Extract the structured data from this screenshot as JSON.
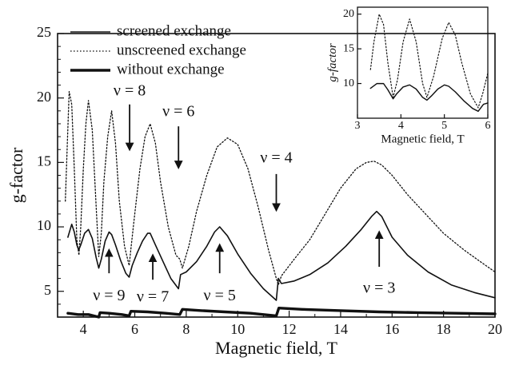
{
  "chart_data": [
    {
      "type": "line",
      "xlabel": "Magnetic field, T",
      "ylabel": "g-factor",
      "xlim": [
        3,
        20
      ],
      "ylim": [
        3,
        25
      ],
      "xticks": [
        4,
        6,
        8,
        10,
        12,
        14,
        16,
        18,
        20
      ],
      "yticks": [
        5,
        10,
        15,
        20,
        25
      ],
      "legend_position": "top-left",
      "series": [
        {
          "name": "screened exchange",
          "style": "solid",
          "color": "#111111",
          "x": [
            3.4,
            3.55,
            3.65,
            3.75,
            3.82,
            3.9,
            4.05,
            4.2,
            4.35,
            4.5,
            4.6,
            4.7,
            4.85,
            5.0,
            5.1,
            5.25,
            5.45,
            5.65,
            5.78,
            5.9,
            6.1,
            6.3,
            6.5,
            6.6,
            6.8,
            7.1,
            7.4,
            7.7,
            7.78,
            8.0,
            8.4,
            8.8,
            9.1,
            9.3,
            9.6,
            10.0,
            10.5,
            11.0,
            11.5,
            11.58,
            11.7,
            12.2,
            12.8,
            13.5,
            14.2,
            14.8,
            15.2,
            15.4,
            15.6,
            16.0,
            16.6,
            17.4,
            18.3,
            19.2,
            20.0
          ],
          "y": [
            9.2,
            10.2,
            9.6,
            8.6,
            8.2,
            8.6,
            9.5,
            9.8,
            9.1,
            7.6,
            6.8,
            7.5,
            8.9,
            9.6,
            9.4,
            8.6,
            7.4,
            6.4,
            6.1,
            7.0,
            8.0,
            8.9,
            9.5,
            9.5,
            8.6,
            7.3,
            6.0,
            5.2,
            6.3,
            6.5,
            7.3,
            8.5,
            9.6,
            10.0,
            9.3,
            7.9,
            6.4,
            5.2,
            4.3,
            6.0,
            5.6,
            5.8,
            6.3,
            7.2,
            8.5,
            9.8,
            10.8,
            11.2,
            10.8,
            9.2,
            7.8,
            6.5,
            5.5,
            4.9,
            4.5
          ]
        },
        {
          "name": "unscreened exchange",
          "style": "dotted",
          "color": "#111111",
          "x": [
            3.3,
            3.38,
            3.45,
            3.55,
            3.65,
            3.75,
            3.83,
            3.9,
            4.0,
            4.1,
            4.2,
            4.35,
            4.5,
            4.6,
            4.7,
            4.8,
            4.95,
            5.1,
            5.25,
            5.4,
            5.6,
            5.78,
            5.85,
            6.0,
            6.2,
            6.4,
            6.6,
            6.8,
            7.0,
            7.3,
            7.6,
            7.75,
            7.85,
            8.1,
            8.4,
            8.8,
            9.2,
            9.6,
            10.0,
            10.4,
            10.8,
            11.2,
            11.5,
            11.58,
            11.7,
            12.2,
            12.8,
            13.4,
            14.0,
            14.6,
            15.0,
            15.3,
            15.6,
            16.0,
            16.6,
            17.3,
            18.0,
            18.8,
            19.5,
            20.0
          ],
          "y": [
            12.0,
            16.5,
            20.5,
            19.5,
            14.5,
            9.0,
            7.8,
            10.0,
            14.5,
            18.0,
            19.8,
            17.5,
            11.5,
            7.7,
            9.5,
            13.5,
            17.0,
            19.0,
            16.5,
            12.0,
            8.5,
            7.0,
            8.3,
            11.0,
            14.5,
            17.0,
            18.0,
            16.5,
            13.5,
            10.0,
            7.8,
            7.5,
            6.8,
            8.5,
            11.2,
            14.0,
            16.2,
            16.9,
            16.4,
            14.5,
            11.5,
            8.2,
            6.0,
            5.5,
            6.2,
            7.5,
            9.0,
            11.0,
            13.0,
            14.5,
            15.0,
            15.1,
            14.8,
            14.0,
            12.5,
            11.0,
            9.5,
            8.2,
            7.2,
            6.5
          ]
        },
        {
          "name": "without exchange",
          "style": "thick-solid",
          "color": "#111111",
          "x": [
            3.4,
            3.8,
            4.2,
            4.6,
            4.65,
            5.0,
            5.5,
            5.78,
            5.85,
            6.5,
            7.2,
            7.75,
            7.85,
            8.6,
            9.5,
            10.5,
            11.5,
            11.6,
            12.5,
            14.0,
            15.5,
            17.0,
            18.5,
            20.0
          ],
          "y": [
            3.3,
            3.2,
            3.2,
            3.0,
            3.35,
            3.3,
            3.2,
            3.1,
            3.45,
            3.4,
            3.3,
            3.2,
            3.6,
            3.5,
            3.4,
            3.3,
            3.1,
            3.7,
            3.6,
            3.5,
            3.4,
            3.35,
            3.3,
            3.25
          ]
        }
      ],
      "annotations": [
        {
          "text": "ν = 8",
          "x": 5.8,
          "y": 20.2,
          "arrow": "down",
          "arrow_from": 19.5,
          "arrow_to": 16.0
        },
        {
          "text": "ν = 6",
          "x": 7.7,
          "y": 18.6,
          "arrow": "down",
          "arrow_from": 17.8,
          "arrow_to": 14.6
        },
        {
          "text": "ν = 4",
          "x": 11.5,
          "y": 15.0,
          "arrow": "down",
          "arrow_from": 14.1,
          "arrow_to": 11.3
        },
        {
          "text": "ν = 9",
          "x": 5.0,
          "y": 4.3,
          "arrow": "up",
          "arrow_from": 6.4,
          "arrow_to": 8.2
        },
        {
          "text": "ν = 7",
          "x": 6.7,
          "y": 4.2,
          "arrow": "up",
          "arrow_from": 5.9,
          "arrow_to": 7.8
        },
        {
          "text": "ν = 5",
          "x": 9.3,
          "y": 4.3,
          "arrow": "up",
          "arrow_from": 6.4,
          "arrow_to": 8.6
        },
        {
          "text": "ν = 3",
          "x": 15.5,
          "y": 4.9,
          "arrow": "up",
          "arrow_from": 6.9,
          "arrow_to": 9.6
        }
      ]
    },
    {
      "type": "line",
      "xlabel": "Magnetic field, T",
      "ylabel": "g-factor",
      "xlim": [
        3,
        6
      ],
      "ylim": [
        5,
        21
      ],
      "xticks": [
        3,
        4,
        5,
        6
      ],
      "yticks": [
        10,
        15,
        20
      ],
      "series": [
        {
          "name": "screened exchange",
          "style": "solid",
          "color": "#111111",
          "x": [
            3.3,
            3.45,
            3.6,
            3.7,
            3.82,
            3.9,
            4.05,
            4.2,
            4.35,
            4.5,
            4.6,
            4.7,
            4.85,
            5.0,
            5.1,
            5.25,
            5.45,
            5.65,
            5.78,
            5.9,
            6.0
          ],
          "y": [
            9.3,
            10.0,
            10.0,
            9.1,
            7.8,
            8.5,
            9.5,
            9.8,
            9.2,
            8.0,
            7.6,
            8.2,
            9.2,
            9.8,
            9.6,
            8.8,
            7.5,
            6.4,
            6.0,
            7.0,
            7.2
          ]
        },
        {
          "name": "unscreened exchange",
          "style": "dotted",
          "color": "#111111",
          "x": [
            3.3,
            3.38,
            3.5,
            3.6,
            3.7,
            3.82,
            3.92,
            4.05,
            4.2,
            4.35,
            4.5,
            4.6,
            4.75,
            4.95,
            5.1,
            5.25,
            5.4,
            5.6,
            5.78,
            5.88,
            6.0
          ],
          "y": [
            12.0,
            16.0,
            20.0,
            18.5,
            13.0,
            8.0,
            10.5,
            16.0,
            19.3,
            16.0,
            10.0,
            8.0,
            11.0,
            16.5,
            18.8,
            17.0,
            13.0,
            8.5,
            6.5,
            8.5,
            11.5
          ]
        }
      ]
    }
  ]
}
